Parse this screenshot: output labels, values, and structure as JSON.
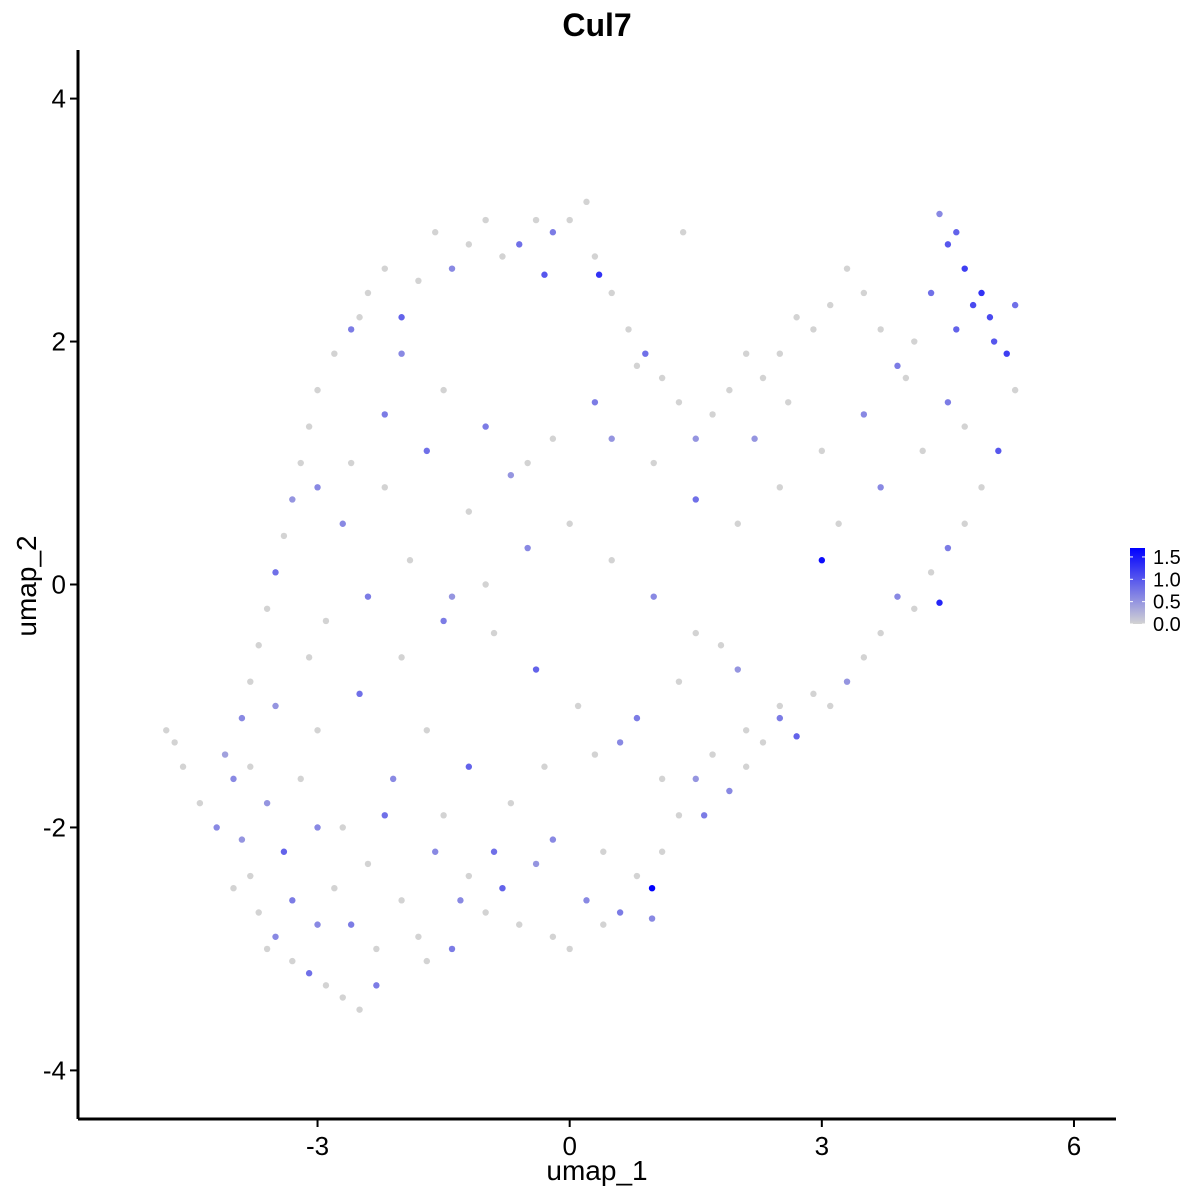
{
  "chart_data": {
    "type": "scatter",
    "title": "Cul7",
    "xlabel": "umap_1",
    "ylabel": "umap_2",
    "xlim": [
      -5.85,
      6.5
    ],
    "ylim": [
      -4.4,
      4.4
    ],
    "xticks": [
      -3,
      0,
      3,
      6
    ],
    "yticks": [
      -4,
      -2,
      0,
      2,
      4
    ],
    "grid": false,
    "legend": {
      "position": "right",
      "ticks": [
        0.0,
        0.5,
        1.0,
        1.5
      ],
      "tick_labels": [
        "0.0",
        "0.5",
        "1.0",
        "1.5"
      ],
      "range": [
        0,
        1.7
      ],
      "colors": [
        "#d3d3d3",
        "#0000ff"
      ]
    },
    "points": [
      [
        -4.8,
        -1.2,
        0
      ],
      [
        -4.7,
        -1.3,
        0
      ],
      [
        -4.6,
        -1.5,
        0
      ],
      [
        -4.4,
        -1.8,
        0
      ],
      [
        -4.1,
        -1.4,
        0.4
      ],
      [
        -4.0,
        -1.6,
        0.6
      ],
      [
        -3.9,
        -2.1,
        0.5
      ],
      [
        -3.8,
        -2.4,
        0
      ],
      [
        -3.7,
        -2.7,
        0
      ],
      [
        -3.5,
        -2.9,
        0.6
      ],
      [
        -3.3,
        -3.1,
        0
      ],
      [
        -3.1,
        -3.2,
        0.8
      ],
      [
        -2.9,
        -3.3,
        0
      ],
      [
        -2.7,
        -3.4,
        0
      ],
      [
        -2.5,
        -3.5,
        0
      ],
      [
        -2.3,
        -3.3,
        0.7
      ],
      [
        -3.6,
        -1.8,
        0.5
      ],
      [
        -3.4,
        -2.2,
        0.9
      ],
      [
        -3.2,
        -1.6,
        0
      ],
      [
        -3.0,
        -2.0,
        0.6
      ],
      [
        -2.8,
        -2.5,
        0
      ],
      [
        -2.6,
        -2.8,
        0.7
      ],
      [
        -2.4,
        -2.3,
        0
      ],
      [
        -2.2,
        -1.9,
        0.8
      ],
      [
        -2.0,
        -2.6,
        0
      ],
      [
        -1.8,
        -2.9,
        0
      ],
      [
        -1.6,
        -2.2,
        0.6
      ],
      [
        -1.4,
        -3.0,
        0.7
      ],
      [
        -1.2,
        -2.4,
        0
      ],
      [
        -1.0,
        -2.7,
        0
      ],
      [
        -0.8,
        -2.5,
        0.9
      ],
      [
        -0.6,
        -2.8,
        0
      ],
      [
        -0.4,
        -2.3,
        0.5
      ],
      [
        -0.2,
        -2.9,
        0
      ],
      [
        0.0,
        -3.0,
        0
      ],
      [
        0.2,
        -2.6,
        0.6
      ],
      [
        0.4,
        -2.8,
        0
      ],
      [
        0.6,
        -2.7,
        0.7
      ],
      [
        0.8,
        -2.4,
        0
      ],
      [
        0.98,
        -2.5,
        1.7
      ],
      [
        0.98,
        -2.75,
        0.6
      ],
      [
        1.1,
        -2.2,
        0
      ],
      [
        1.3,
        -1.9,
        0
      ],
      [
        1.5,
        -1.6,
        0.5
      ],
      [
        1.7,
        -1.4,
        0
      ],
      [
        1.9,
        -1.7,
        0.6
      ],
      [
        2.1,
        -1.5,
        0
      ],
      [
        2.3,
        -1.3,
        0
      ],
      [
        2.5,
        -1.1,
        0.7
      ],
      [
        2.7,
        -1.25,
        0.9
      ],
      [
        2.9,
        -0.9,
        0
      ],
      [
        3.1,
        -1.0,
        0
      ],
      [
        3.3,
        -0.8,
        0.5
      ],
      [
        3.5,
        -0.6,
        0
      ],
      [
        3.7,
        -0.4,
        0
      ],
      [
        3.9,
        -0.1,
        0.6
      ],
      [
        4.1,
        -0.2,
        0
      ],
      [
        4.3,
        0.1,
        0
      ],
      [
        4.5,
        0.3,
        0.7
      ],
      [
        4.7,
        0.5,
        0
      ],
      [
        4.9,
        0.8,
        0
      ],
      [
        5.1,
        1.1,
        1.0
      ],
      [
        5.3,
        1.6,
        0
      ],
      [
        5.2,
        1.9,
        1.2
      ],
      [
        5.0,
        2.2,
        1.1
      ],
      [
        4.9,
        2.4,
        1.3
      ],
      [
        4.7,
        2.6,
        1.2
      ],
      [
        4.5,
        2.8,
        1.0
      ],
      [
        4.4,
        3.05,
        0.6
      ],
      [
        4.6,
        2.9,
        0.9
      ],
      [
        4.8,
        2.3,
        1.1
      ],
      [
        5.3,
        2.3,
        0.8
      ],
      [
        5.05,
        2.0,
        1.0
      ],
      [
        4.6,
        2.1,
        0.9
      ],
      [
        4.3,
        2.4,
        0.8
      ],
      [
        4.1,
        2.0,
        0
      ],
      [
        3.9,
        1.8,
        0.7
      ],
      [
        3.7,
        2.1,
        0
      ],
      [
        3.5,
        2.4,
        0
      ],
      [
        3.3,
        2.6,
        0
      ],
      [
        3.1,
        2.3,
        0
      ],
      [
        2.9,
        2.1,
        0
      ],
      [
        2.7,
        2.2,
        0
      ],
      [
        2.5,
        1.9,
        0
      ],
      [
        2.3,
        1.7,
        0
      ],
      [
        2.1,
        1.9,
        0
      ],
      [
        1.9,
        1.6,
        0
      ],
      [
        1.7,
        1.4,
        0
      ],
      [
        1.5,
        1.2,
        0.5
      ],
      [
        1.3,
        1.5,
        0
      ],
      [
        1.1,
        1.7,
        0
      ],
      [
        0.9,
        1.9,
        0.8
      ],
      [
        0.7,
        2.1,
        0
      ],
      [
        0.5,
        2.4,
        0
      ],
      [
        0.3,
        2.7,
        0
      ],
      [
        0.2,
        3.15,
        0
      ],
      [
        0.0,
        3.0,
        0
      ],
      [
        -0.2,
        2.9,
        0.7
      ],
      [
        -0.4,
        3.0,
        0
      ],
      [
        -0.6,
        2.8,
        0.8
      ],
      [
        -0.8,
        2.7,
        0
      ],
      [
        -1.0,
        3.0,
        0
      ],
      [
        -1.2,
        2.8,
        0
      ],
      [
        -1.4,
        2.6,
        0.6
      ],
      [
        -1.6,
        2.9,
        0
      ],
      [
        -1.8,
        2.5,
        0
      ],
      [
        -2.0,
        2.2,
        0.9
      ],
      [
        -2.2,
        2.6,
        0
      ],
      [
        -2.4,
        2.4,
        0
      ],
      [
        -2.6,
        2.1,
        0.7
      ],
      [
        -2.8,
        1.9,
        0
      ],
      [
        -3.0,
        1.6,
        0
      ],
      [
        -3.1,
        1.3,
        0
      ],
      [
        -3.2,
        1.0,
        0
      ],
      [
        -3.3,
        0.7,
        0.5
      ],
      [
        -3.4,
        0.4,
        0
      ],
      [
        -3.5,
        0.1,
        0.8
      ],
      [
        -3.6,
        -0.2,
        0
      ],
      [
        -3.7,
        -0.5,
        0
      ],
      [
        -3.8,
        -0.8,
        0
      ],
      [
        -3.9,
        -1.1,
        0.6
      ],
      [
        0.35,
        2.55,
        1.3
      ],
      [
        -0.3,
        2.55,
        1.0
      ],
      [
        1.35,
        2.9,
        0
      ],
      [
        3.0,
        0.2,
        1.6
      ],
      [
        4.4,
        -0.15,
        1.4
      ],
      [
        0.0,
        0.5,
        0
      ],
      [
        -0.5,
        0.3,
        0.6
      ],
      [
        -1.0,
        0.0,
        0
      ],
      [
        -1.5,
        -0.3,
        0.7
      ],
      [
        -2.0,
        -0.6,
        0
      ],
      [
        -2.5,
        -0.9,
        0.8
      ],
      [
        -3.0,
        -1.2,
        0
      ],
      [
        0.5,
        0.2,
        0
      ],
      [
        1.0,
        -0.1,
        0.6
      ],
      [
        1.5,
        -0.4,
        0
      ],
      [
        2.0,
        -0.7,
        0.5
      ],
      [
        2.5,
        -1.0,
        0
      ],
      [
        -0.5,
        1.0,
        0
      ],
      [
        -1.0,
        1.3,
        0.7
      ],
      [
        -1.5,
        1.6,
        0
      ],
      [
        -2.0,
        1.9,
        0.6
      ],
      [
        -2.5,
        2.2,
        0
      ],
      [
        0.5,
        1.2,
        0.5
      ],
      [
        1.0,
        1.0,
        0
      ],
      [
        1.5,
        0.7,
        0.8
      ],
      [
        2.0,
        0.5,
        0
      ],
      [
        2.5,
        0.8,
        0
      ],
      [
        3.0,
        1.1,
        0
      ],
      [
        3.5,
        1.4,
        0.6
      ],
      [
        4.0,
        1.7,
        0
      ],
      [
        4.5,
        1.5,
        0.7
      ],
      [
        -1.7,
        -1.2,
        0
      ],
      [
        -1.2,
        -1.5,
        0.9
      ],
      [
        -0.7,
        -1.8,
        0
      ],
      [
        -0.2,
        -2.1,
        0.6
      ],
      [
        0.3,
        -1.4,
        0
      ],
      [
        0.8,
        -1.1,
        0.7
      ],
      [
        1.3,
        -0.8,
        0
      ],
      [
        1.8,
        -0.5,
        0
      ],
      [
        -2.7,
        0.5,
        0.6
      ],
      [
        -2.2,
        0.8,
        0
      ],
      [
        -1.7,
        1.1,
        0.8
      ],
      [
        -1.2,
        0.6,
        0
      ],
      [
        -0.7,
        0.9,
        0.5
      ],
      [
        -0.2,
        1.2,
        0
      ],
      [
        0.3,
        1.5,
        0.7
      ],
      [
        0.8,
        1.8,
        0
      ],
      [
        -2.9,
        -0.3,
        0
      ],
      [
        -2.4,
        -0.1,
        0.7
      ],
      [
        -1.9,
        0.2,
        0
      ],
      [
        -1.4,
        -0.1,
        0.5
      ],
      [
        -0.9,
        -0.4,
        0
      ],
      [
        -0.4,
        -0.7,
        0.9
      ],
      [
        0.1,
        -1.0,
        0
      ],
      [
        0.6,
        -1.3,
        0.6
      ],
      [
        1.1,
        -1.6,
        0
      ],
      [
        1.6,
        -1.9,
        0.7
      ],
      [
        2.1,
        -1.2,
        0
      ],
      [
        3.2,
        0.5,
        0
      ],
      [
        3.7,
        0.8,
        0.6
      ],
      [
        4.2,
        1.1,
        0
      ],
      [
        4.7,
        1.3,
        0
      ],
      [
        2.6,
        1.5,
        0
      ],
      [
        2.2,
        1.2,
        0.5
      ],
      [
        -3.3,
        -2.6,
        0.7
      ],
      [
        -2.7,
        -2.0,
        0
      ],
      [
        -2.1,
        -1.6,
        0.6
      ],
      [
        -1.5,
        -1.9,
        0
      ],
      [
        -0.9,
        -2.2,
        0.8
      ],
      [
        -0.3,
        -1.5,
        0
      ],
      [
        0.4,
        -2.2,
        0
      ],
      [
        -3.8,
        -1.5,
        0
      ],
      [
        -3.5,
        -1.0,
        0.5
      ],
      [
        -3.1,
        -0.6,
        0
      ],
      [
        -4.2,
        -2.0,
        0.6
      ],
      [
        -4.0,
        -2.5,
        0
      ],
      [
        -3.6,
        -3.0,
        0
      ],
      [
        -3.0,
        -2.8,
        0.6
      ],
      [
        -2.3,
        -3.0,
        0
      ],
      [
        -1.7,
        -3.1,
        0
      ],
      [
        -1.3,
        -2.6,
        0.6
      ],
      [
        -2.2,
        1.4,
        0.7
      ],
      [
        -2.6,
        1.0,
        0
      ],
      [
        -3.0,
        0.8,
        0.6
      ]
    ]
  }
}
